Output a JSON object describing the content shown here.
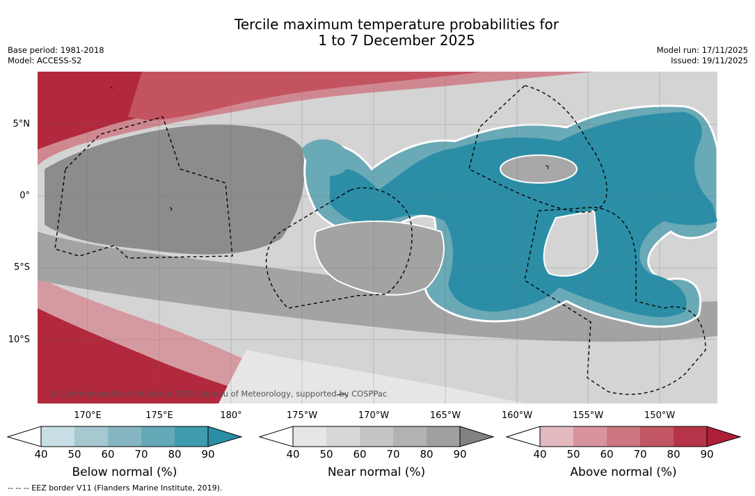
{
  "title": {
    "line1": "Tercile maximum temperature probabilities for",
    "line2": "1 to 7 December 2025"
  },
  "meta_left": {
    "base_period": "Base period: 1981-2018",
    "model": "Model: ACCESS-S2"
  },
  "meta_right": {
    "model_run": "Model run: 17/11/2025",
    "issued": "Issued: 19/11/2025"
  },
  "axes": {
    "lat_labels": [
      "5°N",
      "0°",
      "5°S",
      "10°S"
    ],
    "lon_labels": [
      "170°E",
      "175°E",
      "180°",
      "175°W",
      "170°W",
      "165°W",
      "160°W",
      "155°W",
      "150°W"
    ]
  },
  "copyright": "© Commonwealth of Australia 2025, Bureau of Meteorology, supported by COSPPac",
  "colorbars": [
    {
      "label": "Below normal (%)",
      "ticks": [
        "40",
        "50",
        "60",
        "70",
        "80",
        "90"
      ],
      "colors": [
        "#ffffff",
        "#c7dfe5",
        "#a6c8d0",
        "#87b6c3",
        "#64a9b8",
        "#3f9caf",
        "#2a8fa5"
      ]
    },
    {
      "label": "Near normal (%)",
      "ticks": [
        "40",
        "50",
        "60",
        "70",
        "80",
        "90"
      ],
      "colors": [
        "#ffffff",
        "#e6e6e6",
        "#d7d7d7",
        "#c5c5c5",
        "#b2b2b2",
        "#a0a0a0",
        "#828282"
      ]
    },
    {
      "label": "Above normal (%)",
      "ticks": [
        "40",
        "50",
        "60",
        "70",
        "80",
        "90"
      ],
      "colors": [
        "#ffffff",
        "#e2b9bf",
        "#d7949c",
        "#cc7780",
        "#c25662",
        "#b63447",
        "#ad1f37"
      ]
    }
  ],
  "footnote": "--  --  -- EEZ border V11 (Flanders Marine Institute, 2019)."
}
